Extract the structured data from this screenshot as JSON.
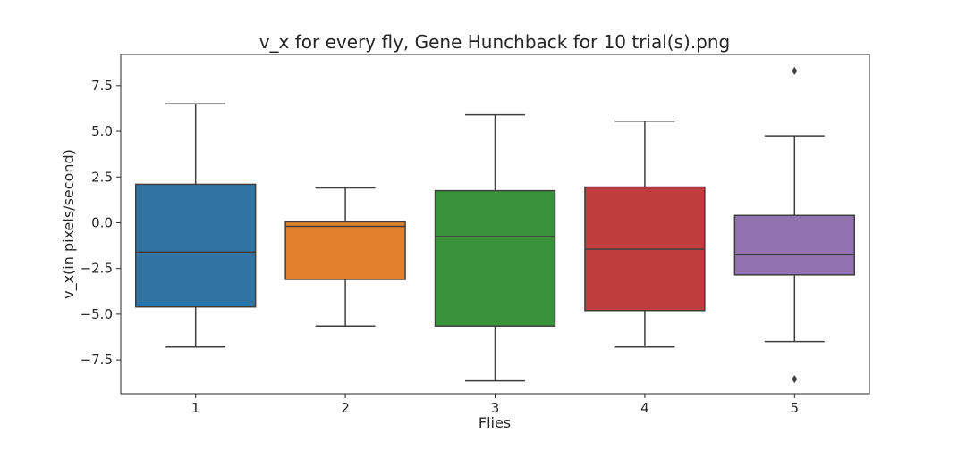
{
  "chart_data": {
    "type": "box",
    "title": "v_x for every fly, Gene Hunchback for 10 trial(s).png",
    "xlabel": "Flies",
    "ylabel": "v_x(in pixels/second)",
    "ylim": [
      -9.35,
      9.2
    ],
    "yticks": [
      -7.5,
      -5.0,
      -2.5,
      0.0,
      2.5,
      5.0,
      7.5
    ],
    "ytick_labels": [
      "−7.5",
      "−5.0",
      "−2.5",
      "0.0",
      "2.5",
      "5.0",
      "7.5"
    ],
    "categories": [
      "1",
      "2",
      "3",
      "4",
      "5"
    ],
    "boxes": [
      {
        "category": "1",
        "whisker_low": -6.8,
        "q1": -4.6,
        "median": -1.6,
        "q3": 2.1,
        "whisker_high": 6.5,
        "outliers": [],
        "color": "#3274a1"
      },
      {
        "category": "2",
        "whisker_low": -5.65,
        "q1": -3.1,
        "median": -0.2,
        "q3": 0.05,
        "whisker_high": 1.9,
        "outliers": [],
        "color": "#e1812c"
      },
      {
        "category": "3",
        "whisker_low": -8.65,
        "q1": -5.65,
        "median": -0.75,
        "q3": 1.75,
        "whisker_high": 5.9,
        "outliers": [],
        "color": "#3a923a"
      },
      {
        "category": "4",
        "whisker_low": -6.8,
        "q1": -4.8,
        "median": -1.45,
        "q3": 1.95,
        "whisker_high": 5.55,
        "outliers": [],
        "color": "#c03d3e"
      },
      {
        "category": "5",
        "whisker_low": -6.5,
        "q1": -2.85,
        "median": -1.75,
        "q3": 0.4,
        "whisker_high": 4.75,
        "outliers": [
          8.3,
          -8.55
        ],
        "color": "#9372b2"
      }
    ],
    "grid": false,
    "legend": "none"
  }
}
